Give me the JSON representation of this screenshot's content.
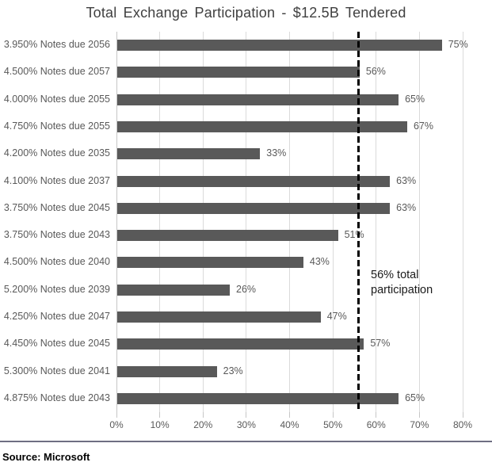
{
  "title": "Total Exchange Participation - $12.5B Tendered",
  "source": "Source: Microsoft",
  "colors": {
    "bar": "#595959",
    "gridline": "#dadada",
    "axis": "#c6c6c6",
    "reference_line": "#000000",
    "bottom_rule": "#6e6e82",
    "title_text": "#404040",
    "label_text": "#595959"
  },
  "chart_data": {
    "type": "bar",
    "orientation": "horizontal",
    "title": "Total Exchange Participation - $12.5B Tendered",
    "categories": [
      "3.950% Notes due 2056",
      "4.500% Notes due 2057",
      "4.000% Notes due 2055",
      "4.750% Notes due 2055",
      "4.200% Notes due 2035",
      "4.100% Notes due 2037",
      "3.750% Notes due 2045",
      "3.750% Notes due 2043",
      "4.500% Notes due 2040",
      "5.200% Notes due 2039",
      "4.250% Notes due 2047",
      "4.450% Notes due 2045",
      "5.300% Notes due 2041",
      "4.875% Notes due 2043"
    ],
    "values": [
      75,
      56,
      65,
      67,
      33,
      63,
      63,
      51,
      43,
      26,
      47,
      57,
      23,
      65
    ],
    "value_labels": [
      "75%",
      "56%",
      "65%",
      "67%",
      "33%",
      "63%",
      "63%",
      "51%",
      "43%",
      "26%",
      "47%",
      "57%",
      "23%",
      "65%"
    ],
    "x_ticks": [
      "0%",
      "10%",
      "20%",
      "30%",
      "40%",
      "50%",
      "60%",
      "70%",
      "80%"
    ],
    "xlim": [
      0,
      80
    ],
    "grid": true,
    "legend": false,
    "reference_line": {
      "value": 56,
      "style": "dashed",
      "label": "56% total participation",
      "label_lines": [
        "56% total",
        "participation"
      ]
    },
    "xlabel": "",
    "ylabel": ""
  }
}
